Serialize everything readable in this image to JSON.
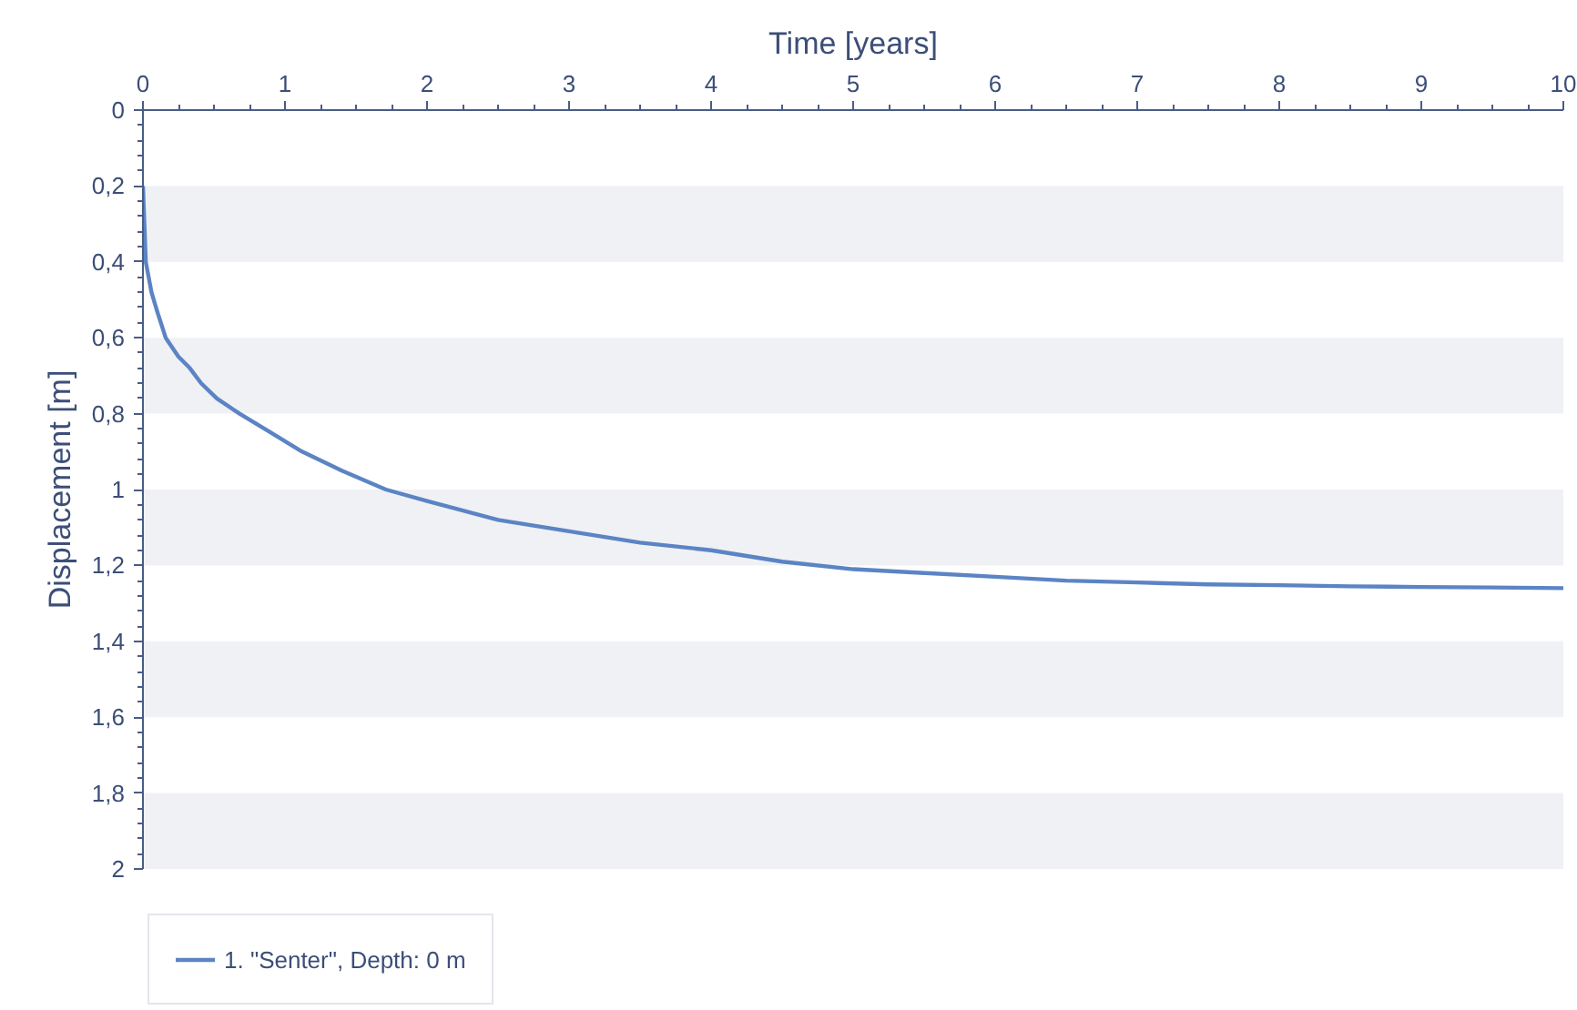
{
  "chart_data": {
    "type": "line",
    "xlabel": "Time [years]",
    "ylabel": "Displacement [m]",
    "xlim": [
      0,
      10
    ],
    "xticks": [
      0,
      1,
      2,
      3,
      4,
      5,
      6,
      7,
      8,
      9,
      10
    ],
    "ylim": [
      2,
      0
    ],
    "yticks": [
      0,
      {
        "value": 0.2,
        "label": "0,2"
      },
      {
        "value": 0.4,
        "label": "0,4"
      },
      {
        "value": 0.6,
        "label": "0,6"
      },
      {
        "value": 0.8,
        "label": "0,8"
      },
      1,
      {
        "value": 1.2,
        "label": "1,2"
      },
      {
        "value": 1.4,
        "label": "1,4"
      },
      {
        "value": 1.6,
        "label": "1,6"
      },
      {
        "value": 1.8,
        "label": "1,8"
      },
      2
    ],
    "bands": [
      {
        "axis": "y",
        "from": 0.2,
        "to": 0.4,
        "color": "#f0f1f5"
      },
      {
        "axis": "y",
        "from": 0.6,
        "to": 0.8,
        "color": "#f0f1f5"
      },
      {
        "axis": "y",
        "from": 1.0,
        "to": 1.2,
        "color": "#f0f1f5"
      },
      {
        "axis": "y",
        "from": 1.4,
        "to": 1.6,
        "color": "#f0f1f5"
      },
      {
        "axis": "y",
        "from": 1.8,
        "to": 2.0,
        "color": "#f0f1f5"
      }
    ],
    "legend": "bottom left",
    "line_style": "solid",
    "series": [
      {
        "name": "1. \"Senter\", Depth: 0 m",
        "color": "#5b84c4",
        "x": [
          0,
          0.02,
          0.06,
          0.1,
          0.16,
          0.25,
          0.33,
          0.41,
          0.52,
          0.68,
          0.9,
          1.12,
          1.4,
          1.71,
          2,
          2.5,
          3,
          3.5,
          4,
          4.5,
          5,
          5.5,
          6,
          6.5,
          7,
          7.5,
          8,
          8.5,
          9,
          9.5,
          10
        ],
        "values": [
          0.2,
          0.4,
          0.48,
          0.53,
          0.6,
          0.65,
          0.68,
          0.72,
          0.76,
          0.8,
          0.85,
          0.9,
          0.95,
          1.0,
          1.03,
          1.08,
          1.11,
          1.14,
          1.16,
          1.19,
          1.21,
          1.22,
          1.23,
          1.24,
          1.245,
          1.25,
          1.252,
          1.255,
          1.257,
          1.258,
          1.26
        ]
      }
    ]
  }
}
